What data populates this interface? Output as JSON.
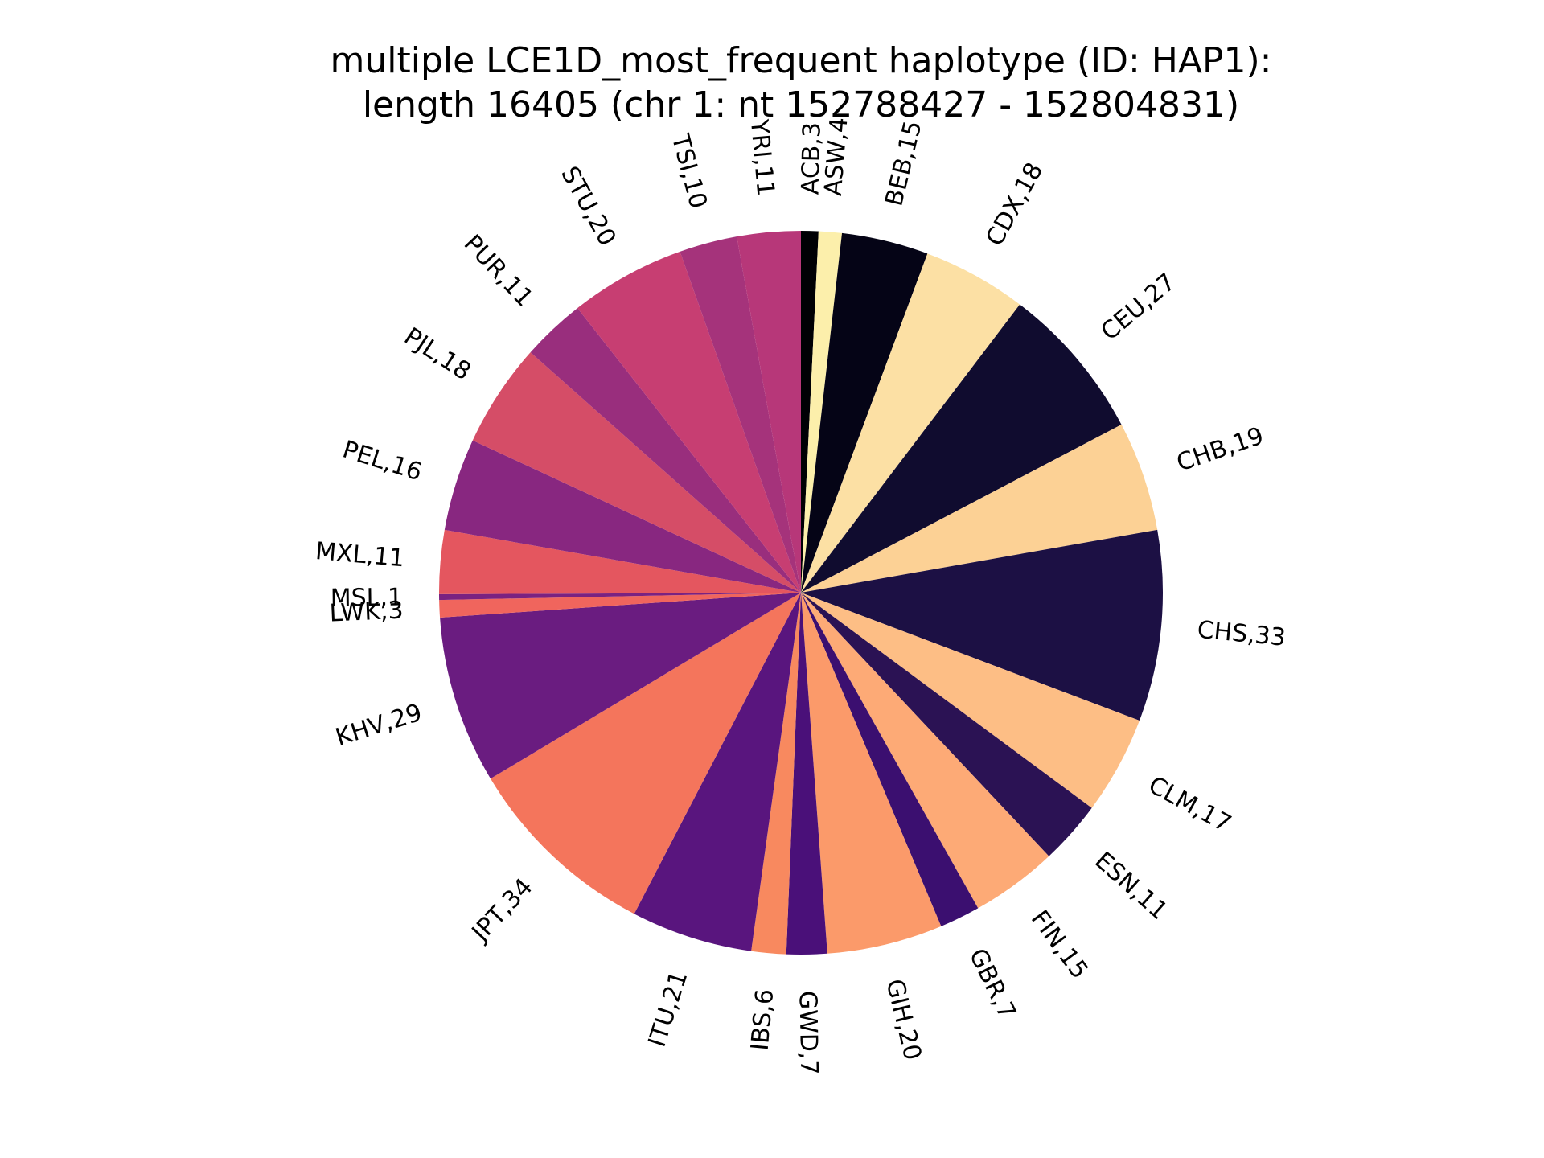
{
  "chart_data": {
    "type": "pie",
    "title": "multiple LCE1D_most_frequent haplotype (ID: HAP1):",
    "subtitle": "length 16405 (chr 1: nt 152788427 - 152804831)",
    "start": "top",
    "direction": "clockwise",
    "slices": [
      {
        "label": "ACB",
        "value": 3,
        "color": "#000004"
      },
      {
        "label": "ASW",
        "value": 4,
        "color": "#fcefab"
      },
      {
        "label": "BEB",
        "value": 15,
        "color": "#050416"
      },
      {
        "label": "CDX",
        "value": 18,
        "color": "#fce0a4"
      },
      {
        "label": "CEU",
        "value": 27,
        "color": "#100c2f"
      },
      {
        "label": "CHB",
        "value": 19,
        "color": "#fcd195"
      },
      {
        "label": "CHS",
        "value": 33,
        "color": "#1c1044"
      },
      {
        "label": "CLM",
        "value": 17,
        "color": "#fdbe85"
      },
      {
        "label": "ESN",
        "value": 11,
        "color": "#2b1254"
      },
      {
        "label": "FIN",
        "value": 15,
        "color": "#fdaa76"
      },
      {
        "label": "GBR",
        "value": 7,
        "color": "#3b0f70"
      },
      {
        "label": "GIH",
        "value": 20,
        "color": "#fb9a6a"
      },
      {
        "label": "GWD",
        "value": 7,
        "color": "#4a1079"
      },
      {
        "label": "IBS",
        "value": 6,
        "color": "#f8895f"
      },
      {
        "label": "ITU",
        "value": 21,
        "color": "#59157e"
      },
      {
        "label": "JPT",
        "value": 34,
        "color": "#f4755c"
      },
      {
        "label": "KHV",
        "value": 29,
        "color": "#6a1c80"
      },
      {
        "label": "LWK",
        "value": 3,
        "color": "#f0655d"
      },
      {
        "label": "MSL",
        "value": 1,
        "color": "#7a2281"
      },
      {
        "label": "MXL",
        "value": 11,
        "color": "#e4565f"
      },
      {
        "label": "PEL",
        "value": 16,
        "color": "#882780"
      },
      {
        "label": "PJL",
        "value": 18,
        "color": "#d54d67"
      },
      {
        "label": "PUR",
        "value": 11,
        "color": "#992e7d"
      },
      {
        "label": "STU",
        "value": 20,
        "color": "#c73e72"
      },
      {
        "label": "TSI",
        "value": 10,
        "color": "#a5337b"
      },
      {
        "label": "YRI",
        "value": 11,
        "color": "#b73779"
      }
    ]
  }
}
